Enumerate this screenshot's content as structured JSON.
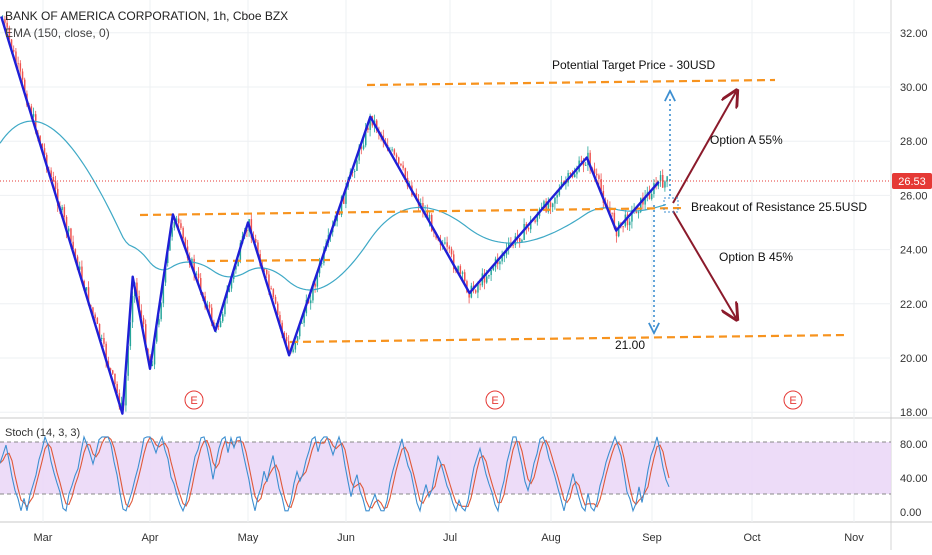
{
  "header": {
    "symbol_title": "BANK OF AMERICA CORPORATION, 1h, Cboe BZX",
    "indicator_label": "EMA (150, close, 0)"
  },
  "oscillator": {
    "label": "Stoch (14, 3, 3)",
    "ticks": [
      "80.00",
      "40.00",
      "0.00"
    ],
    "upper_band": 80,
    "lower_band": 20
  },
  "price_axis": {
    "ticks": [
      "32.00",
      "30.00",
      "28.00",
      "26.00",
      "24.00",
      "22.00",
      "20.00",
      "18.00"
    ],
    "current_price": "26.53"
  },
  "time_axis": {
    "ticks": [
      "Mar",
      "Apr",
      "May",
      "Jun",
      "Jul",
      "Aug",
      "Sep",
      "Oct",
      "Nov"
    ]
  },
  "annotations": {
    "target": "Potential Target Price - 30USD",
    "option_a": "Option A 55%",
    "option_b": "Option B 45%",
    "breakout": "Breakout of Resistance 25.5USD",
    "support": "21.00",
    "earnings_marker": "E"
  },
  "colors": {
    "zigzag": "#1f1fd6",
    "dashed_levels": "#f7931e",
    "ema": "#3fa9c6",
    "arrows": "#8b1a2b",
    "projection": "#3d8fd1",
    "stoch_fill": "#e9d4f7",
    "stoch_k": "#3d8fd1",
    "stoch_d": "#e0593a",
    "candle_up": "#26a69a",
    "candle_down": "#ef5350",
    "price_badge": "#e53935"
  },
  "chart_data": {
    "type": "line",
    "y_range": [
      18,
      32.5
    ],
    "zigzag_path": [
      {
        "x": "Feb 18",
        "y": 32.6
      },
      {
        "x": "Mar 24",
        "y": 17.95
      },
      {
        "x": "Mar 27",
        "y": 23.0
      },
      {
        "x": "Apr 1",
        "y": 19.6
      },
      {
        "x": "Apr 8",
        "y": 25.3
      },
      {
        "x": "Apr 21",
        "y": 21.0
      },
      {
        "x": "May 1",
        "y": 25.0
      },
      {
        "x": "May 14",
        "y": 20.1
      },
      {
        "x": "Jun 8",
        "y": 28.9
      },
      {
        "x": "Jul 7",
        "y": 22.4
      },
      {
        "x": "Aug 12",
        "y": 27.4
      },
      {
        "x": "Aug 21",
        "y": 24.7
      },
      {
        "x": "Sep 3",
        "y": 26.5
      }
    ],
    "levels": [
      {
        "name": "Breakout of Resistance 25.5USD",
        "value": 25.5
      },
      {
        "name": "Potential Target Price - 30USD",
        "value": 30
      },
      {
        "name": "21.00",
        "value": 21
      }
    ],
    "current_price": 26.53,
    "earnings_dates": [
      "Apr 15",
      "Jul 16",
      "Oct 14"
    ]
  }
}
